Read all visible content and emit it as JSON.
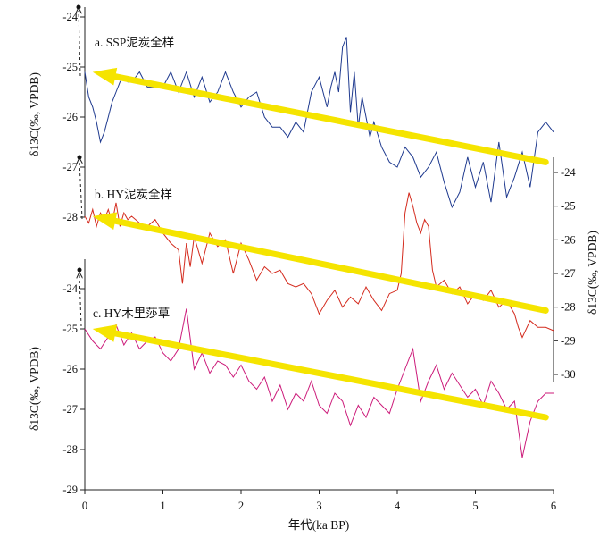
{
  "chart_data": [
    {
      "type": "line",
      "panel": "a",
      "title": "a. SSP泥炭全样",
      "ylabel": "δ13C(‰, VPDB)",
      "axis_side": "left",
      "ylim": [
        -24,
        -28
      ],
      "yticks": [
        "-24",
        "-25",
        "-26",
        "-27",
        "-28"
      ],
      "color": "#1f3a8f",
      "series": [
        {
          "x": [
            0.0,
            0.05,
            0.1,
            0.15,
            0.2,
            0.25,
            0.3,
            0.35,
            0.4,
            0.45,
            0.5,
            0.55,
            0.6,
            0.7,
            0.8,
            0.9,
            1.0,
            1.1,
            1.2,
            1.3,
            1.4,
            1.5,
            1.6,
            1.7,
            1.8,
            1.9,
            2.0,
            2.1,
            2.2,
            2.3,
            2.4,
            2.5,
            2.6,
            2.7,
            2.8,
            2.85,
            2.9,
            3.0,
            3.1,
            3.15,
            3.2,
            3.25,
            3.3,
            3.35,
            3.4,
            3.45,
            3.5,
            3.55,
            3.6,
            3.65,
            3.7,
            3.8,
            3.9,
            4.0,
            4.1,
            4.2,
            4.3,
            4.4,
            4.5,
            4.6,
            4.7,
            4.8,
            4.9,
            5.0,
            5.1,
            5.2,
            5.3,
            5.4,
            5.5,
            5.6,
            5.7,
            5.8,
            5.9,
            6.0
          ],
          "y": [
            -25.1,
            -25.6,
            -25.8,
            -26.1,
            -26.5,
            -26.3,
            -26.0,
            -25.7,
            -25.5,
            -25.3,
            -25.2,
            -25.3,
            -25.3,
            -25.1,
            -25.4,
            -25.4,
            -25.4,
            -25.1,
            -25.5,
            -25.1,
            -25.6,
            -25.2,
            -25.7,
            -25.5,
            -25.1,
            -25.5,
            -25.8,
            -25.6,
            -25.5,
            -26.0,
            -26.2,
            -26.2,
            -26.4,
            -26.1,
            -26.3,
            -25.9,
            -25.5,
            -25.2,
            -25.8,
            -25.4,
            -25.1,
            -25.5,
            -24.6,
            -24.4,
            -25.9,
            -25.1,
            -26.2,
            -25.6,
            -26.0,
            -26.4,
            -26.1,
            -26.6,
            -26.9,
            -27.0,
            -26.6,
            -26.8,
            -27.2,
            -27.0,
            -26.7,
            -27.3,
            -27.8,
            -27.5,
            -26.8,
            -27.4,
            -26.9,
            -27.7,
            -26.5,
            -27.6,
            -27.2,
            -26.7,
            -27.4,
            -26.3,
            -26.1,
            -26.3
          ]
        }
      ]
    },
    {
      "type": "line",
      "panel": "b",
      "title": "b. HY泥炭全样",
      "ylabel": "δ13C(‰, VPDB)",
      "axis_side": "right",
      "ylim": [
        -24,
        -30
      ],
      "yticks": [
        "-24",
        "-25",
        "-26",
        "-27",
        "-28",
        "-29",
        "-30"
      ],
      "color": "#d42b1e",
      "series": [
        {
          "x": [
            0.0,
            0.05,
            0.1,
            0.15,
            0.2,
            0.25,
            0.3,
            0.35,
            0.4,
            0.45,
            0.5,
            0.55,
            0.6,
            0.7,
            0.8,
            0.9,
            1.0,
            1.1,
            1.2,
            1.25,
            1.3,
            1.35,
            1.4,
            1.5,
            1.6,
            1.7,
            1.8,
            1.9,
            2.0,
            2.1,
            2.2,
            2.3,
            2.4,
            2.5,
            2.6,
            2.7,
            2.8,
            2.9,
            3.0,
            3.1,
            3.2,
            3.3,
            3.4,
            3.5,
            3.6,
            3.7,
            3.8,
            3.9,
            4.0,
            4.05,
            4.1,
            4.15,
            4.2,
            4.25,
            4.3,
            4.35,
            4.4,
            4.45,
            4.5,
            4.6,
            4.7,
            4.8,
            4.9,
            5.0,
            5.1,
            5.2,
            5.3,
            5.4,
            5.5,
            5.55,
            5.6,
            5.7,
            5.8,
            5.9,
            6.0
          ],
          "y": [
            -25.3,
            -25.5,
            -25.1,
            -25.6,
            -25.2,
            -25.4,
            -25.1,
            -25.5,
            -24.9,
            -25.6,
            -25.2,
            -25.4,
            -25.3,
            -25.5,
            -25.6,
            -25.4,
            -25.8,
            -26.1,
            -26.3,
            -27.3,
            -26.1,
            -26.8,
            -25.9,
            -26.7,
            -25.8,
            -26.2,
            -26.0,
            -27.0,
            -26.1,
            -26.6,
            -27.2,
            -26.8,
            -27.0,
            -26.9,
            -27.3,
            -27.4,
            -27.3,
            -27.6,
            -28.2,
            -27.8,
            -27.5,
            -28.0,
            -27.7,
            -27.9,
            -27.4,
            -27.8,
            -28.1,
            -27.6,
            -27.5,
            -27.0,
            -25.2,
            -24.6,
            -25.0,
            -25.5,
            -25.8,
            -25.4,
            -25.6,
            -26.9,
            -27.4,
            -27.2,
            -27.6,
            -27.4,
            -27.9,
            -27.6,
            -27.8,
            -27.5,
            -28.0,
            -27.8,
            -28.2,
            -28.6,
            -28.9,
            -28.4,
            -28.6,
            -28.6,
            -28.7
          ]
        }
      ]
    },
    {
      "type": "line",
      "panel": "c",
      "title": "c. HY木里莎草",
      "ylabel": "δ13C(‰, VPDB)",
      "axis_side": "left",
      "ylim": [
        -24,
        -29
      ],
      "yticks": [
        "-24",
        "-25",
        "-26",
        "-27",
        "-28",
        "-29"
      ],
      "color": "#cc1b7a",
      "series": [
        {
          "x": [
            0.0,
            0.1,
            0.2,
            0.3,
            0.4,
            0.5,
            0.6,
            0.7,
            0.8,
            0.9,
            1.0,
            1.1,
            1.2,
            1.3,
            1.4,
            1.5,
            1.6,
            1.7,
            1.8,
            1.9,
            2.0,
            2.1,
            2.2,
            2.3,
            2.4,
            2.5,
            2.6,
            2.7,
            2.8,
            2.9,
            3.0,
            3.1,
            3.2,
            3.3,
            3.4,
            3.5,
            3.6,
            3.7,
            3.8,
            3.9,
            4.0,
            4.1,
            4.2,
            4.3,
            4.4,
            4.5,
            4.6,
            4.7,
            4.8,
            4.9,
            5.0,
            5.1,
            5.2,
            5.3,
            5.4,
            5.5,
            5.6,
            5.7,
            5.8,
            5.9,
            6.0
          ],
          "y": [
            -25.0,
            -25.3,
            -25.5,
            -25.2,
            -24.9,
            -25.4,
            -25.1,
            -25.5,
            -25.3,
            -25.2,
            -25.6,
            -25.8,
            -25.5,
            -24.5,
            -26.0,
            -25.6,
            -26.1,
            -25.8,
            -25.9,
            -26.2,
            -25.9,
            -26.3,
            -26.5,
            -26.2,
            -26.8,
            -26.4,
            -27.0,
            -26.6,
            -26.8,
            -26.3,
            -26.9,
            -27.1,
            -26.6,
            -26.8,
            -27.4,
            -26.9,
            -27.2,
            -26.7,
            -26.9,
            -27.1,
            -26.5,
            -26.0,
            -25.5,
            -26.8,
            -26.3,
            -25.9,
            -26.5,
            -26.1,
            -26.4,
            -26.7,
            -26.5,
            -26.9,
            -26.3,
            -26.6,
            -27.0,
            -26.8,
            -28.2,
            -27.3,
            -26.8,
            -26.6,
            -26.6
          ]
        }
      ]
    }
  ],
  "xaxis": {
    "label": "年代(ka BP)",
    "ticks": [
      "0",
      "1",
      "2",
      "3",
      "4",
      "5",
      "6"
    ],
    "xlim": [
      0,
      6
    ]
  },
  "trend_arrows": {
    "color": "#f5e400",
    "note": "Yellow arrows: trend from 6 ka toward 0 ka in each panel",
    "a": {
      "from": [
        5.9,
        -26.9
      ],
      "to": [
        0.1,
        -25.1
      ]
    },
    "b": {
      "from": [
        5.9,
        -28.1
      ],
      "to": [
        0.1,
        -25.3
      ]
    },
    "c": {
      "from": [
        5.9,
        -27.2
      ],
      "to": [
        0.1,
        -25.0
      ]
    }
  }
}
